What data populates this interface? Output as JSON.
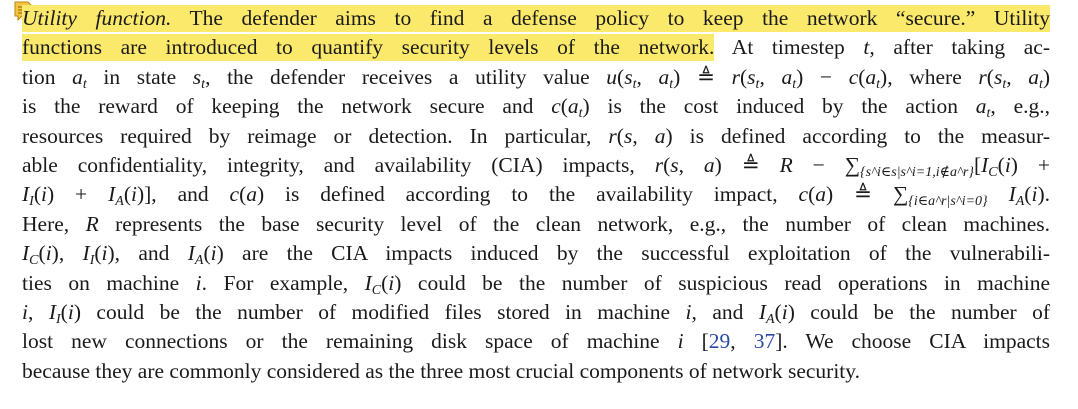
{
  "paragraph": {
    "heading": "Utility function.",
    "l1_a": " The defender aims to find a defense policy to keep the network “secure.” Utility",
    "l2_a": "functions are introduced to quantify security levels of the network.",
    "l2_b": " At timestep ",
    "l2_t": "t",
    "l2_c": ", after taking ac-",
    "l3": [
      "tion ",
      "a",
      "t",
      " in state ",
      "s",
      "t",
      ", the defender receives a utility value ",
      "u",
      "(",
      "s",
      "t",
      ", ",
      "a",
      "t",
      ") ≜ ",
      "r",
      "(",
      "s",
      "t",
      ", ",
      "a",
      "t",
      ") − ",
      "c",
      "(",
      "a",
      "t",
      "), where ",
      "r",
      "(",
      "s",
      "t",
      ", ",
      "a",
      "t",
      ")"
    ],
    "l4": [
      "is the reward of keeping the network secure and ",
      "c",
      "(",
      "a",
      "t",
      ") is the cost induced by the action ",
      "a",
      "t",
      ", e.g.,"
    ],
    "l5": [
      "resources required by reimage or detection. In particular, ",
      "r",
      "(",
      "s",
      ", ",
      "a",
      ") is defined according to the measur-"
    ],
    "l6": [
      "able confidentiality, integrity, and availability (CIA) impacts, ",
      "r",
      "(",
      "s",
      ", ",
      "a",
      ") ≜ ",
      "R",
      " − ∑",
      "{s^i∈s|s^i=1,i∉a^r}",
      "[",
      "I",
      "C",
      "(",
      "i",
      ") +"
    ],
    "l7": [
      "I",
      "I",
      "(",
      "i",
      ") + ",
      "I",
      "A",
      "(",
      "i",
      ")], and ",
      "c",
      "(",
      "a",
      ") is defined according to the availability impact, ",
      "c",
      "(",
      "a",
      ") ≜ ∑",
      "{i∈a^r|s^i=0}",
      " ",
      "I",
      "A",
      "(",
      "i",
      ")."
    ],
    "l8": [
      "Here, ",
      "R",
      " represents the base security level of the clean network, e.g., the number of clean machines."
    ],
    "l9": [
      "I",
      "C",
      "(",
      "i",
      "), ",
      "I",
      "I",
      "(",
      "i",
      "), and ",
      "I",
      "A",
      "(",
      "i",
      ") are the CIA impacts induced by the successful exploitation of the vulnerabili-"
    ],
    "l10": [
      "ties on machine ",
      "i",
      ". For example, ",
      "I",
      "C",
      "(",
      "i",
      ") could be the number of suspicious read operations in machine"
    ],
    "l11": [
      "i",
      ", ",
      "I",
      "I",
      "(",
      "i",
      ") could be the number of modified files stored in machine ",
      "i",
      ", and ",
      "I",
      "A",
      "(",
      "i",
      ") could be the number of"
    ],
    "l12": [
      "lost new connections or the remaining disk space of machine ",
      "i",
      " [",
      "29",
      ", ",
      "37",
      "]. We choose CIA impacts"
    ],
    "l13": "because they are commonly considered as the three most crucial components of network security."
  },
  "highlight_color": "#fbe96b",
  "icons": {
    "annotation": "sticky-note-icon"
  }
}
